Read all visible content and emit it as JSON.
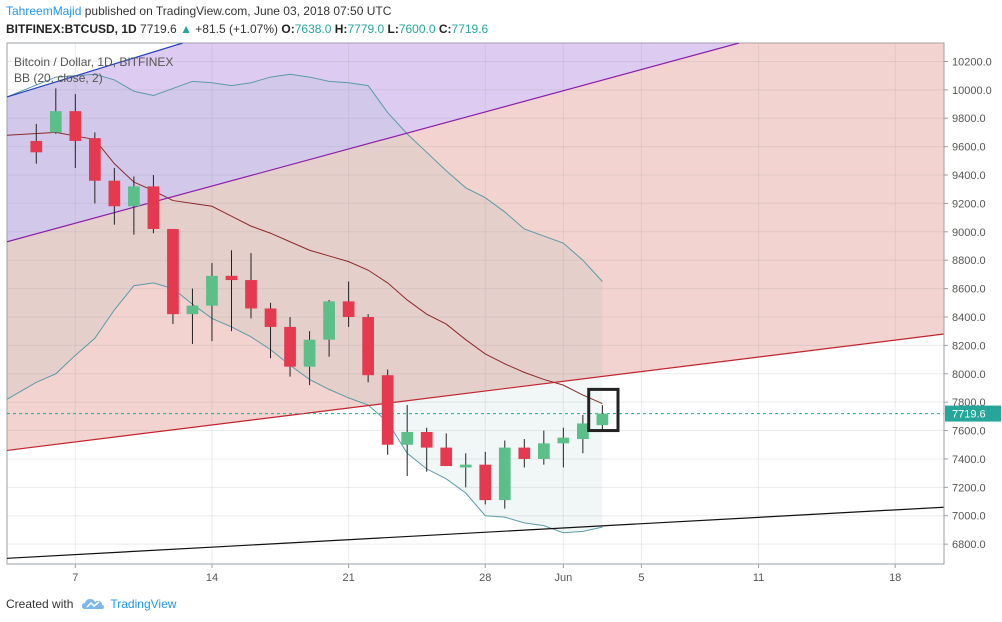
{
  "header": {
    "author": "TahreemMajid",
    "published_text": "published on TradingView.com, June 03, 2018 07:50 UTC",
    "symbol": "BITFINEX:BTCUSD, 1D",
    "last": "7719.6",
    "change": "+81.5 (+1.07%)",
    "o_label": "O:",
    "o_value": "7638.0",
    "h_label": "H:",
    "h_value": "7779.0",
    "l_label": "L:",
    "l_value": "7600.0",
    "c_label": "C:",
    "c_value": "7719.6"
  },
  "legend": {
    "title": "Bitcoin / Dollar, 1D, BITFINEX",
    "indicator": "BB (20, close, 2)"
  },
  "footer": {
    "created_with": "Created with",
    "brand": "TradingView"
  },
  "colors": {
    "up": "#5cbf8a",
    "down": "#e5394f",
    "price_line": "#26a69a",
    "bb_band": "#5b9aa8",
    "bb_basis": "#8b2a2a",
    "channel_blue": "#1f3fbf",
    "channel_purple": "#8a1fa8",
    "channel_red": "#c0242c",
    "support_black": "#111111"
  },
  "chart_data": {
    "type": "candlestick",
    "y_range": [
      6660,
      10330
    ],
    "y_ticks": [
      6800,
      7000,
      7200,
      7400,
      7600,
      7800,
      8000,
      8200,
      8400,
      8600,
      8800,
      9000,
      9200,
      9400,
      9600,
      9800,
      10000,
      10200
    ],
    "x_tick_labels": [
      {
        "day": 7,
        "label": "7"
      },
      {
        "day": 14,
        "label": "14"
      },
      {
        "day": 21,
        "label": "21"
      },
      {
        "day": 28,
        "label": "28"
      },
      {
        "day": 32,
        "label": "Jun"
      },
      {
        "day": 36,
        "label": "5"
      },
      {
        "day": 42,
        "label": "11"
      },
      {
        "day": 49,
        "label": "18"
      }
    ],
    "x_range_days": [
      3.5,
      51.5
    ],
    "last_price": 7719.6,
    "last_price_label": "7719.6",
    "candles": [
      {
        "day": 5,
        "o": 9640,
        "h": 9760,
        "l": 9480,
        "c": 9560
      },
      {
        "day": 6,
        "o": 9700,
        "h": 10010,
        "l": 9690,
        "c": 9850
      },
      {
        "day": 7,
        "o": 9850,
        "h": 9970,
        "l": 9450,
        "c": 9640
      },
      {
        "day": 8,
        "o": 9660,
        "h": 9700,
        "l": 9200,
        "c": 9360
      },
      {
        "day": 9,
        "o": 9360,
        "h": 9450,
        "l": 9050,
        "c": 9180
      },
      {
        "day": 10,
        "o": 9180,
        "h": 9390,
        "l": 8980,
        "c": 9320
      },
      {
        "day": 11,
        "o": 9320,
        "h": 9400,
        "l": 8990,
        "c": 9020
      },
      {
        "day": 12,
        "o": 9020,
        "h": 9020,
        "l": 8350,
        "c": 8420
      },
      {
        "day": 13,
        "o": 8420,
        "h": 8600,
        "l": 8210,
        "c": 8480
      },
      {
        "day": 14,
        "o": 8480,
        "h": 8780,
        "l": 8230,
        "c": 8690
      },
      {
        "day": 15,
        "o": 8690,
        "h": 8870,
        "l": 8300,
        "c": 8660
      },
      {
        "day": 16,
        "o": 8660,
        "h": 8850,
        "l": 8390,
        "c": 8460
      },
      {
        "day": 17,
        "o": 8460,
        "h": 8500,
        "l": 8110,
        "c": 8330
      },
      {
        "day": 18,
        "o": 8330,
        "h": 8400,
        "l": 7980,
        "c": 8050
      },
      {
        "day": 19,
        "o": 8050,
        "h": 8300,
        "l": 7920,
        "c": 8240
      },
      {
        "day": 20,
        "o": 8240,
        "h": 8520,
        "l": 8120,
        "c": 8510
      },
      {
        "day": 21,
        "o": 8510,
        "h": 8650,
        "l": 8330,
        "c": 8400
      },
      {
        "day": 22,
        "o": 8400,
        "h": 8420,
        "l": 7940,
        "c": 7990
      },
      {
        "day": 23,
        "o": 7990,
        "h": 8030,
        "l": 7430,
        "c": 7500
      },
      {
        "day": 24,
        "o": 7500,
        "h": 7780,
        "l": 7280,
        "c": 7590
      },
      {
        "day": 25,
        "o": 7590,
        "h": 7620,
        "l": 7310,
        "c": 7480
      },
      {
        "day": 26,
        "o": 7480,
        "h": 7580,
        "l": 7350,
        "c": 7350
      },
      {
        "day": 27,
        "o": 7340,
        "h": 7440,
        "l": 7200,
        "c": 7360
      },
      {
        "day": 28,
        "o": 7360,
        "h": 7450,
        "l": 7080,
        "c": 7110
      },
      {
        "day": 29,
        "o": 7110,
        "h": 7530,
        "l": 7050,
        "c": 7480
      },
      {
        "day": 30,
        "o": 7480,
        "h": 7540,
        "l": 7340,
        "c": 7400
      },
      {
        "day": 31,
        "o": 7400,
        "h": 7600,
        "l": 7360,
        "c": 7510
      },
      {
        "day": 32,
        "o": 7510,
        "h": 7620,
        "l": 7340,
        "c": 7550
      },
      {
        "day": 33,
        "o": 7540,
        "h": 7710,
        "l": 7440,
        "c": 7650
      },
      {
        "day": 34,
        "o": 7638,
        "h": 7779,
        "l": 7600,
        "c": 7719.6
      }
    ],
    "bollinger": {
      "upper": [
        {
          "day": 3.5,
          "v": 9950
        },
        {
          "day": 6,
          "v": 10090
        },
        {
          "day": 8,
          "v": 10110
        },
        {
          "day": 9,
          "v": 10070
        },
        {
          "day": 10,
          "v": 9990
        },
        {
          "day": 11,
          "v": 9960
        },
        {
          "day": 12,
          "v": 10010
        },
        {
          "day": 13,
          "v": 10060
        },
        {
          "day": 14,
          "v": 10050
        },
        {
          "day": 15,
          "v": 10030
        },
        {
          "day": 16,
          "v": 10050
        },
        {
          "day": 17,
          "v": 10090
        },
        {
          "day": 18,
          "v": 10110
        },
        {
          "day": 19,
          "v": 10090
        },
        {
          "day": 20,
          "v": 10060
        },
        {
          "day": 21,
          "v": 10050
        },
        {
          "day": 22,
          "v": 10030
        },
        {
          "day": 23,
          "v": 9840
        },
        {
          "day": 24,
          "v": 9690
        },
        {
          "day": 25,
          "v": 9560
        },
        {
          "day": 26,
          "v": 9430
        },
        {
          "day": 27,
          "v": 9310
        },
        {
          "day": 28,
          "v": 9240
        },
        {
          "day": 29,
          "v": 9140
        },
        {
          "day": 30,
          "v": 9020
        },
        {
          "day": 31,
          "v": 8970
        },
        {
          "day": 32,
          "v": 8920
        },
        {
          "day": 33,
          "v": 8800
        },
        {
          "day": 34,
          "v": 8650
        }
      ],
      "basis": [
        {
          "day": 3.5,
          "v": 9680
        },
        {
          "day": 6,
          "v": 9700
        },
        {
          "day": 8,
          "v": 9650
        },
        {
          "day": 9,
          "v": 9480
        },
        {
          "day": 10,
          "v": 9350
        },
        {
          "day": 11,
          "v": 9290
        },
        {
          "day": 12,
          "v": 9220
        },
        {
          "day": 13,
          "v": 9200
        },
        {
          "day": 14,
          "v": 9180
        },
        {
          "day": 15,
          "v": 9110
        },
        {
          "day": 16,
          "v": 9040
        },
        {
          "day": 17,
          "v": 8990
        },
        {
          "day": 18,
          "v": 8930
        },
        {
          "day": 19,
          "v": 8870
        },
        {
          "day": 20,
          "v": 8830
        },
        {
          "day": 21,
          "v": 8790
        },
        {
          "day": 22,
          "v": 8730
        },
        {
          "day": 23,
          "v": 8640
        },
        {
          "day": 24,
          "v": 8520
        },
        {
          "day": 25,
          "v": 8420
        },
        {
          "day": 26,
          "v": 8350
        },
        {
          "day": 27,
          "v": 8240
        },
        {
          "day": 28,
          "v": 8140
        },
        {
          "day": 29,
          "v": 8070
        },
        {
          "day": 30,
          "v": 8010
        },
        {
          "day": 31,
          "v": 7960
        },
        {
          "day": 32,
          "v": 7920
        },
        {
          "day": 33,
          "v": 7850
        },
        {
          "day": 34,
          "v": 7790
        }
      ],
      "lower": [
        {
          "day": 3.5,
          "v": 7820
        },
        {
          "day": 5,
          "v": 7940
        },
        {
          "day": 6,
          "v": 8000
        },
        {
          "day": 7,
          "v": 8130
        },
        {
          "day": 8,
          "v": 8250
        },
        {
          "day": 9,
          "v": 8450
        },
        {
          "day": 10,
          "v": 8620
        },
        {
          "day": 11,
          "v": 8640
        },
        {
          "day": 12,
          "v": 8600
        },
        {
          "day": 13,
          "v": 8490
        },
        {
          "day": 14,
          "v": 8390
        },
        {
          "day": 15,
          "v": 8330
        },
        {
          "day": 16,
          "v": 8260
        },
        {
          "day": 17,
          "v": 8170
        },
        {
          "day": 18,
          "v": 8060
        },
        {
          "day": 19,
          "v": 7960
        },
        {
          "day": 20,
          "v": 7890
        },
        {
          "day": 21,
          "v": 7830
        },
        {
          "day": 22,
          "v": 7780
        },
        {
          "day": 23,
          "v": 7660
        },
        {
          "day": 24,
          "v": 7440
        },
        {
          "day": 25,
          "v": 7330
        },
        {
          "day": 26,
          "v": 7260
        },
        {
          "day": 27,
          "v": 7160
        },
        {
          "day": 28,
          "v": 7000
        },
        {
          "day": 29,
          "v": 6990
        },
        {
          "day": 30,
          "v": 6950
        },
        {
          "day": 31,
          "v": 6930
        },
        {
          "day": 32,
          "v": 6880
        },
        {
          "day": 33,
          "v": 6890
        },
        {
          "day": 34,
          "v": 6920
        }
      ]
    },
    "trend_lines": [
      {
        "name": "blue-channel-line",
        "color": "#1f3fbf",
        "p1": {
          "day": 3.5,
          "v": 9950
        },
        "p2": {
          "day": 12.5,
          "v": 10330
        }
      },
      {
        "name": "purple-channel-line",
        "color": "#8a1fa8",
        "p1": {
          "day": 3.5,
          "v": 8930
        },
        "p2": {
          "day": 41,
          "v": 10330
        }
      },
      {
        "name": "red-channel-line",
        "color": "#c0242c",
        "p1": {
          "day": 3.5,
          "v": 7460
        },
        "p2": {
          "day": 51.5,
          "v": 8280
        }
      },
      {
        "name": "black-support-line",
        "color": "#111111",
        "p1": {
          "day": 3.5,
          "v": 6700
        },
        "p2": {
          "day": 51.5,
          "v": 7060
        }
      }
    ],
    "highlight_box": {
      "day_start": 33.3,
      "day_end": 34.8,
      "v_low": 7600,
      "v_high": 7890
    }
  }
}
